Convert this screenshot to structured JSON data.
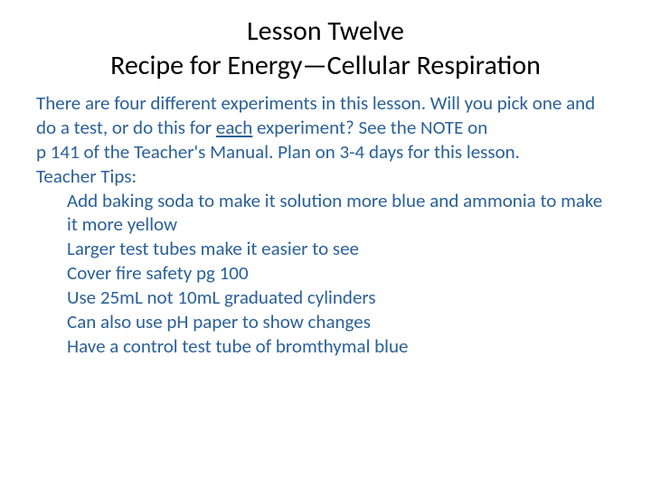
{
  "colors": {
    "background": "#ffffff",
    "title_color": "#000000",
    "body_color": "#2a6099"
  },
  "typography": {
    "title_fontsize": 30,
    "body_fontsize": 21,
    "font_family": "Calibri"
  },
  "title": {
    "line1": "Lesson Twelve",
    "line2": "Recipe for Energy—Cellular Respiration"
  },
  "intro": {
    "part1": "There are four different experiments in this lesson.  Will you pick one and do a test, or do this for ",
    "underlined": "each",
    "part2": " experiment?  See the NOTE on",
    "line4": "p 141  of the Teacher's Manual.  Plan on 3-4 days for this lesson."
  },
  "tips_header": "Teacher Tips:",
  "tips": [
    "Add baking soda to make it solution more blue and ammonia to make it more yellow",
    "Larger test tubes make it easier to see",
    "Cover fire safety pg 100",
    "Use 25mL not 10mL graduated cylinders",
    "Can also use pH paper to show changes",
    "Have a control test tube of bromthymal blue"
  ]
}
